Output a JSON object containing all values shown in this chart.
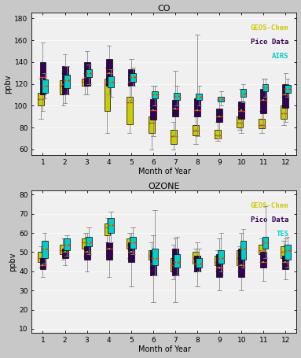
{
  "co": {
    "title": "CO",
    "ylabel": "ppbv",
    "xlabel": "Month of Year",
    "ylim": [
      55,
      185
    ],
    "yticks": [
      60,
      80,
      100,
      120,
      140,
      160,
      180
    ],
    "legend_labels": [
      "GEOS-Chem",
      "Pico Data",
      "AIRS"
    ],
    "geos": {
      "whislo": [
        88,
        100,
        110,
        75,
        75,
        60,
        60,
        65,
        68,
        78,
        75,
        82
      ],
      "q1": [
        100,
        110,
        118,
        95,
        83,
        75,
        65,
        73,
        70,
        80,
        79,
        88
      ],
      "med": [
        106,
        118,
        122,
        120,
        103,
        84,
        72,
        77,
        73,
        84,
        82,
        93
      ],
      "q3": [
        112,
        123,
        125,
        125,
        108,
        90,
        78,
        82,
        78,
        90,
        88,
        100
      ],
      "whishi": [
        125,
        130,
        130,
        135,
        120,
        100,
        85,
        90,
        85,
        100,
        95,
        108
      ],
      "mean": [
        106,
        117,
        122,
        118,
        103,
        84,
        73,
        78,
        73,
        84,
        83,
        93
      ]
    },
    "pico": {
      "whislo": [
        95,
        102,
        110,
        110,
        105,
        72,
        72,
        72,
        70,
        75,
        80,
        85
      ],
      "q1": [
        110,
        110,
        118,
        118,
        118,
        87,
        90,
        90,
        85,
        88,
        93,
        98
      ],
      "med": [
        126,
        120,
        126,
        130,
        122,
        96,
        97,
        96,
        90,
        95,
        105,
        110
      ],
      "q3": [
        140,
        136,
        140,
        143,
        133,
        106,
        105,
        107,
        97,
        104,
        115,
        120
      ],
      "whishi": [
        158,
        147,
        150,
        155,
        143,
        118,
        132,
        165,
        105,
        115,
        125,
        130
      ],
      "mean": [
        124,
        120,
        126,
        130,
        122,
        96,
        97,
        96,
        90,
        96,
        105,
        110
      ]
    },
    "airs": {
      "whislo": [
        107,
        110,
        120,
        108,
        118,
        100,
        100,
        100,
        100,
        103,
        108,
        108
      ],
      "q1": [
        112,
        116,
        126,
        117,
        122,
        107,
        105,
        105,
        104,
        108,
        113,
        112
      ],
      "med": [
        118,
        123,
        130,
        122,
        126,
        110,
        109,
        108,
        106,
        111,
        117,
        115
      ],
      "q3": [
        124,
        128,
        133,
        127,
        130,
        113,
        112,
        111,
        108,
        115,
        120,
        119
      ],
      "whishi": [
        130,
        136,
        138,
        133,
        135,
        118,
        118,
        118,
        113,
        120,
        125,
        125
      ],
      "mean": [
        118,
        123,
        130,
        122,
        126,
        110,
        109,
        108,
        106,
        111,
        117,
        115
      ]
    }
  },
  "ozone": {
    "title": "OZONE",
    "ylabel": "ppbv",
    "xlabel": "Month of Year",
    "ylim": [
      8,
      82
    ],
    "yticks": [
      10,
      20,
      30,
      40,
      50,
      60,
      70,
      80
    ],
    "legend_labels": [
      "GEOS-Chem",
      "Pico Data",
      "TES"
    ],
    "geos": {
      "whislo": [
        42,
        46,
        48,
        55,
        47,
        42,
        36,
        40,
        40,
        40,
        45,
        44
      ],
      "q1": [
        45,
        49,
        52,
        59,
        52,
        46,
        40,
        44,
        43,
        43,
        49,
        47
      ],
      "med": [
        47,
        51,
        55,
        63,
        54,
        48,
        43,
        47,
        45,
        47,
        51,
        50
      ],
      "q3": [
        50,
        54,
        57,
        65,
        57,
        51,
        47,
        50,
        48,
        51,
        54,
        53
      ],
      "whishi": [
        53,
        57,
        60,
        68,
        60,
        55,
        54,
        52,
        51,
        53,
        57,
        56
      ],
      "mean": [
        47,
        51,
        55,
        63,
        54,
        48,
        43,
        47,
        45,
        47,
        51,
        50
      ]
    },
    "pico": {
      "whislo": [
        37,
        43,
        40,
        37,
        32,
        24,
        24,
        32,
        30,
        30,
        35,
        36
      ],
      "q1": [
        41,
        47,
        46,
        46,
        45,
        38,
        38,
        40,
        37,
        37,
        42,
        41
      ],
      "med": [
        43,
        50,
        50,
        52,
        50,
        44,
        43,
        44,
        42,
        43,
        45,
        45
      ],
      "q3": [
        47,
        52,
        53,
        55,
        55,
        51,
        52,
        48,
        49,
        52,
        50,
        48
      ],
      "whishi": [
        53,
        57,
        60,
        63,
        60,
        59,
        57,
        55,
        57,
        60,
        57,
        57
      ],
      "mean": [
        43,
        50,
        50,
        52,
        50,
        44,
        43,
        44,
        42,
        43,
        45,
        45
      ]
    },
    "tes": {
      "whislo": [
        44,
        48,
        49,
        55,
        49,
        38,
        38,
        40,
        40,
        42,
        47,
        42
      ],
      "q1": [
        47,
        51,
        53,
        60,
        52,
        43,
        42,
        42,
        44,
        46,
        52,
        46
      ],
      "med": [
        52,
        54,
        55,
        64,
        55,
        47,
        45,
        44,
        47,
        52,
        55,
        51
      ],
      "q3": [
        56,
        57,
        58,
        68,
        58,
        52,
        49,
        47,
        51,
        56,
        58,
        54
      ],
      "whishi": [
        60,
        59,
        63,
        71,
        63,
        72,
        58,
        52,
        60,
        62,
        74,
        58
      ],
      "mean": [
        52,
        54,
        55,
        64,
        55,
        47,
        45,
        44,
        47,
        52,
        55,
        51
      ]
    }
  },
  "bg_color": "#c8c8c8",
  "ax_bg_color": "#f0f0f0",
  "geos_color": "#cccc00",
  "pico_color": "#330055",
  "airs_tes_color": "#00cccc",
  "median_color": "#ff2222",
  "mean_color": "#00ff00",
  "box_width": 0.28
}
